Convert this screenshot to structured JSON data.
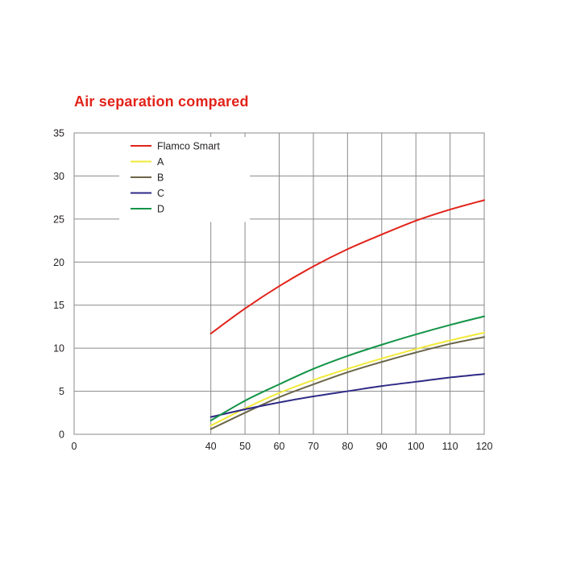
{
  "chart_data": {
    "type": "line",
    "title": "Air separation compared",
    "xlabel": "",
    "ylabel": "",
    "xlim": [
      0,
      120
    ],
    "ylim": [
      0,
      35
    ],
    "xticks": [
      0,
      40,
      50,
      60,
      70,
      80,
      90,
      100,
      110,
      120
    ],
    "yticks": [
      0,
      5,
      10,
      15,
      20,
      25,
      30,
      35
    ],
    "grid": true,
    "legend_position": "top-left",
    "x": [
      40,
      50,
      60,
      70,
      80,
      90,
      100,
      110,
      120
    ],
    "series": [
      {
        "name": "Flamco Smart",
        "color": "#e2231a",
        "values": [
          11.7,
          14.6,
          17.2,
          19.5,
          21.5,
          23.2,
          24.8,
          26.1,
          27.2
        ]
      },
      {
        "name": "A",
        "color": "#f2ea3a",
        "values": [
          1.0,
          3.0,
          4.8,
          6.3,
          7.6,
          8.8,
          9.9,
          10.9,
          11.8
        ]
      },
      {
        "name": "B",
        "color": "#6b6648",
        "values": [
          0.6,
          2.5,
          4.3,
          5.8,
          7.2,
          8.4,
          9.5,
          10.5,
          11.3
        ]
      },
      {
        "name": "C",
        "color": "#2e2a85",
        "values": [
          2.0,
          2.9,
          3.7,
          4.4,
          5.0,
          5.6,
          6.1,
          6.6,
          7.0
        ]
      },
      {
        "name": "D",
        "color": "#139447",
        "values": [
          1.6,
          3.9,
          5.8,
          7.6,
          9.1,
          10.4,
          11.6,
          12.7,
          13.7
        ]
      }
    ]
  }
}
